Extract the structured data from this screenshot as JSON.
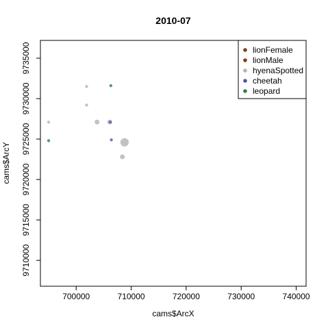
{
  "chart_data": {
    "type": "scatter",
    "title": "2010-07",
    "xlabel": "cams$ArcX",
    "ylabel": "cams$ArcY",
    "xlim": [
      693500,
      741800
    ],
    "ylim": [
      9706800,
      9737200
    ],
    "xticks": [
      700000,
      710000,
      720000,
      730000,
      740000
    ],
    "yticks": [
      9710000,
      9715000,
      9720000,
      9725000,
      9730000,
      9735000
    ],
    "grid": false,
    "legend_position": "top-right",
    "series": [
      {
        "name": "lionFemale",
        "color": "#8B3A1A",
        "points": []
      },
      {
        "name": "lionMale",
        "color": "#8B3A1A",
        "points": []
      },
      {
        "name": "hyenaSpotted",
        "color": "#B3B3B3",
        "points": [
          {
            "x": 695000,
            "y": 9727100,
            "size": 1
          },
          {
            "x": 701900,
            "y": 9731500,
            "size": 1
          },
          {
            "x": 701900,
            "y": 9729200,
            "size": 1
          },
          {
            "x": 703800,
            "y": 9727100,
            "size": 2
          },
          {
            "x": 706100,
            "y": 9727100,
            "size": 2
          },
          {
            "x": 708800,
            "y": 9724600,
            "size": 4
          },
          {
            "x": 708400,
            "y": 9722800,
            "size": 2
          }
        ]
      },
      {
        "name": "cheetah",
        "color": "#5B4FB0",
        "points": [
          {
            "x": 706200,
            "y": 9727100,
            "size": 1
          },
          {
            "x": 706400,
            "y": 9724900,
            "size": 1
          }
        ]
      },
      {
        "name": "leopard",
        "color": "#2E7D4F",
        "points": [
          {
            "x": 695000,
            "y": 9724800,
            "size": 1
          },
          {
            "x": 706300,
            "y": 9731600,
            "size": 1
          }
        ]
      }
    ]
  }
}
